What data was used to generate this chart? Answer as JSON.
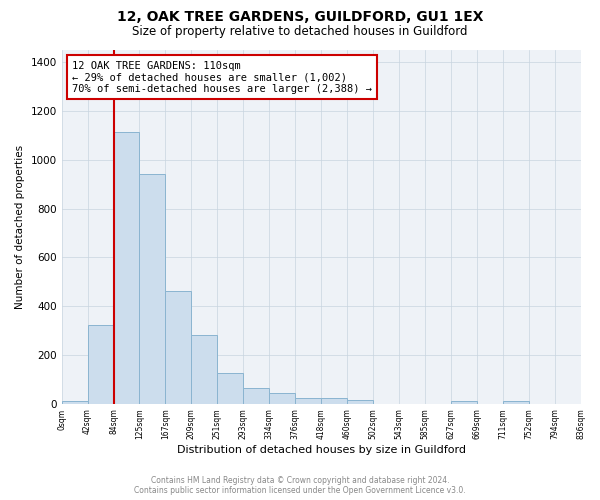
{
  "title": "12, OAK TREE GARDENS, GUILDFORD, GU1 1EX",
  "subtitle": "Size of property relative to detached houses in Guildford",
  "xlabel": "Distribution of detached houses by size in Guildford",
  "ylabel": "Number of detached properties",
  "bar_values": [
    10,
    323,
    1113,
    940,
    462,
    281,
    125,
    65,
    45,
    25,
    25,
    15,
    0,
    0,
    0,
    10,
    0,
    10,
    0,
    0
  ],
  "categories": [
    "0sqm",
    "42sqm",
    "84sqm",
    "125sqm",
    "167sqm",
    "209sqm",
    "251sqm",
    "293sqm",
    "334sqm",
    "376sqm",
    "418sqm",
    "460sqm",
    "502sqm",
    "543sqm",
    "585sqm",
    "627sqm",
    "669sqm",
    "711sqm",
    "752sqm",
    "794sqm",
    "836sqm"
  ],
  "bar_color": "#ccdded",
  "bar_edge_color": "#8ab4d0",
  "vline_color": "#cc0000",
  "annotation_text": "12 OAK TREE GARDENS: 110sqm\n← 29% of detached houses are smaller (1,002)\n70% of semi-detached houses are larger (2,388) →",
  "annotation_box_color": "#ffffff",
  "annotation_box_edge": "#cc0000",
  "ylim": [
    0,
    1450
  ],
  "yticks": [
    0,
    200,
    400,
    600,
    800,
    1000,
    1200,
    1400
  ],
  "footer_line1": "Contains HM Land Registry data © Crown copyright and database right 2024.",
  "footer_line2": "Contains public sector information licensed under the Open Government Licence v3.0.",
  "bg_color": "#ffffff",
  "plot_bg_color": "#eef2f7",
  "grid_color": "#c8d4e0"
}
